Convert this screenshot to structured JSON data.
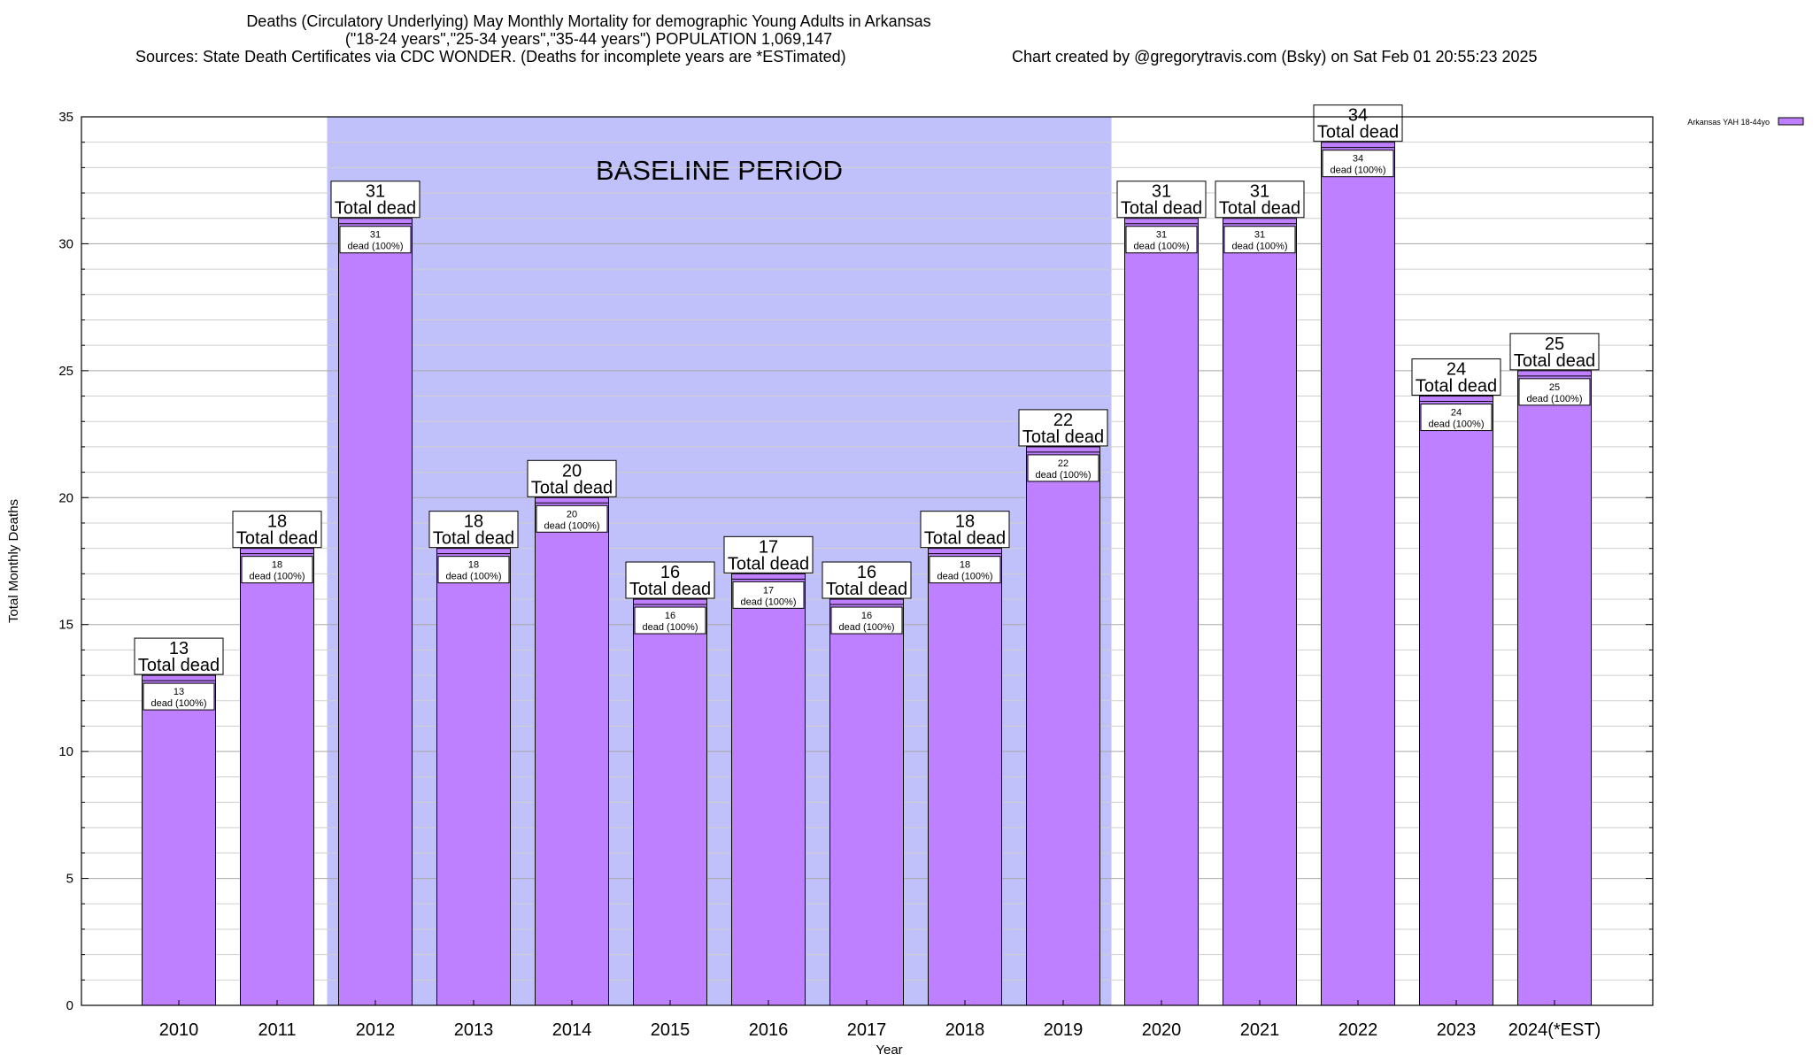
{
  "header": {
    "title": "Deaths (Circulatory Underlying) May Monthly Mortality for demographic Young Adults in Arkansas",
    "subtitle": "(\"18-24 years\",\"25-34 years\",\"35-44 years\") POPULATION 1,069,147",
    "sources": "Sources: State Death Certificates via CDC WONDER. (Deaths for incomplete years are *ESTimated)",
    "credit": "Chart created by @gregorytravis.com (Bsky) on Sat Feb 01 20:55:23 2025"
  },
  "chart_data": {
    "type": "bar",
    "xlabel": "Year",
    "ylabel": "Total Monthly Deaths",
    "ylim": [
      0,
      35
    ],
    "yticks": [
      0,
      5,
      10,
      15,
      20,
      25,
      30,
      35
    ],
    "grid": true,
    "legend_position": "top-right",
    "categories": [
      "2010",
      "2011",
      "2012",
      "2013",
      "2014",
      "2015",
      "2016",
      "2017",
      "2018",
      "2019",
      "2020",
      "2021",
      "2022",
      "2023",
      "2024(*EST)"
    ],
    "series": [
      {
        "name": "Arkansas YAH 18-44yo",
        "color": "#bf80ff",
        "values": [
          13,
          18,
          31,
          18,
          20,
          16,
          17,
          16,
          18,
          22,
          31,
          31,
          34,
          24,
          25
        ]
      }
    ],
    "total_label": "Total dead",
    "inner_label_suffix": "dead (100%)",
    "baseline": {
      "label": "BASELINE PERIOD",
      "from": "2012",
      "to": "2019",
      "color": "#c0c0fa"
    }
  }
}
